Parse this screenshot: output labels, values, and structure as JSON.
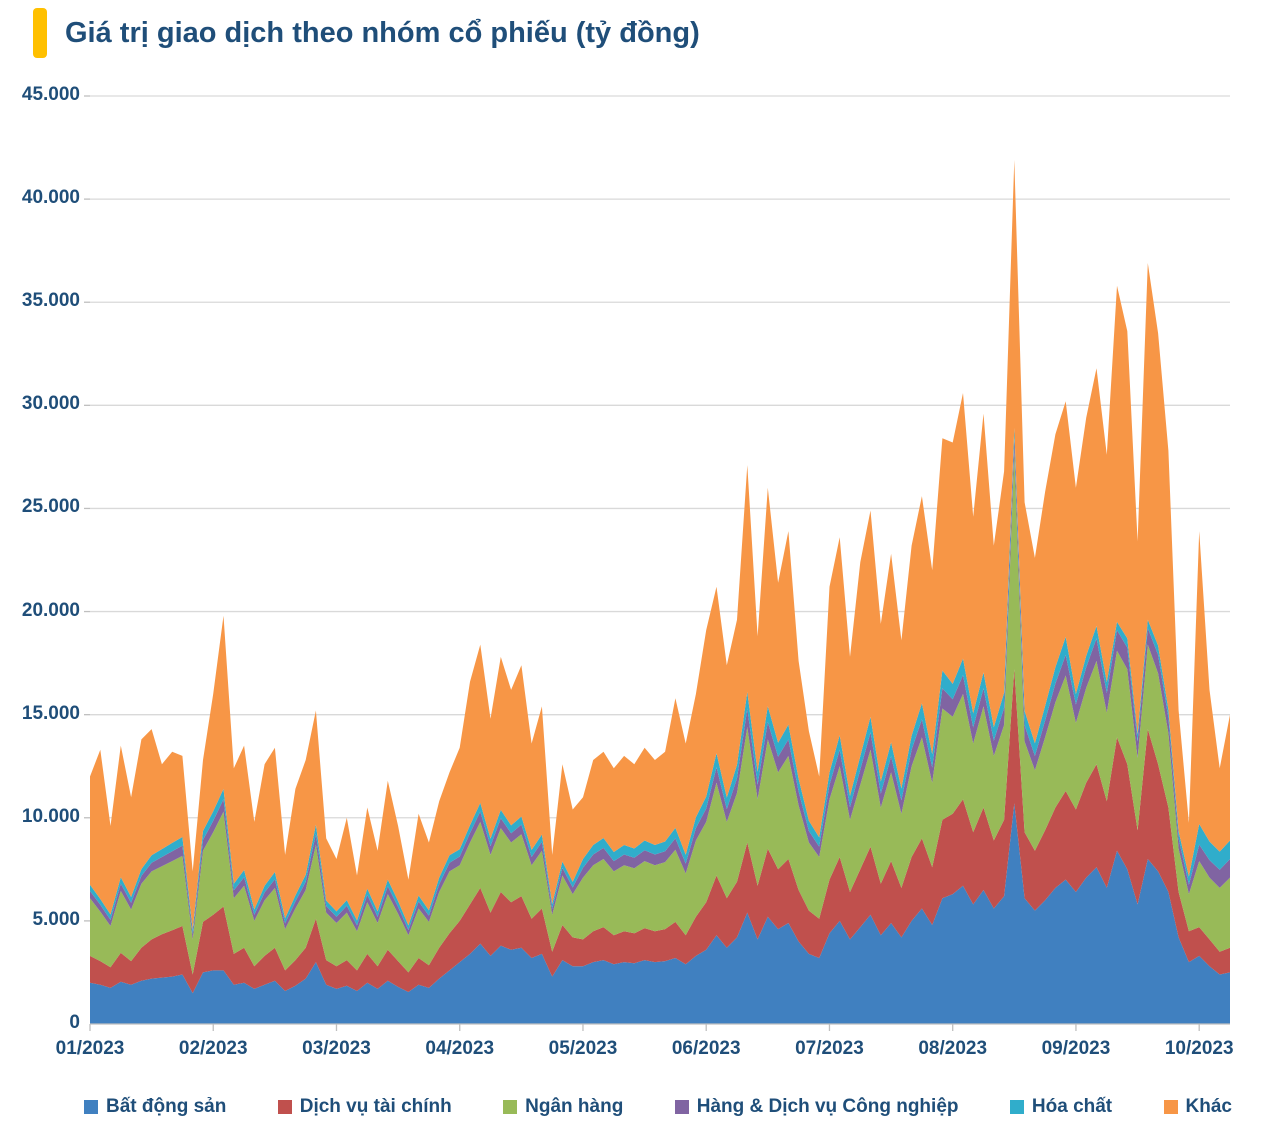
{
  "title": "Giá trị giao dịch theo nhóm cổ phiếu (tỷ đồng)",
  "colors": {
    "accent": "#FFC000",
    "text": "#1F4E79",
    "grid": "#D9D9D9",
    "axis": "#BFBFBF",
    "background": "#FFFFFF"
  },
  "chart_data": {
    "type": "area",
    "stacked": true,
    "title": "Giá trị giao dịch theo nhóm cổ phiếu (tỷ đồng)",
    "unit": "tỷ đồng",
    "ylim": [
      0,
      45000
    ],
    "ytick_step": 5000,
    "ytick_labels": [
      "0",
      "5.000",
      "10.000",
      "15.000",
      "20.000",
      "25.000",
      "30.000",
      "35.000",
      "40.000",
      "45.000"
    ],
    "x_labels": [
      "01/2023",
      "02/2023",
      "03/2023",
      "04/2023",
      "05/2023",
      "06/2023",
      "07/2023",
      "08/2023",
      "09/2023",
      "10/2023"
    ],
    "month_start_indices": [
      0,
      12,
      24,
      36,
      48,
      60,
      72,
      84,
      96,
      108
    ],
    "grid": true,
    "legend_position": "bottom",
    "series": [
      {
        "name": "Bất động sản",
        "color": "#4080C0",
        "values": [
          2000,
          1900,
          1750,
          2050,
          1900,
          2100,
          2200,
          2250,
          2300,
          2400,
          1500,
          2500,
          2600,
          2600,
          1900,
          2000,
          1700,
          1900,
          2100,
          1600,
          1850,
          2200,
          3000,
          1900,
          1700,
          1850,
          1600,
          2000,
          1700,
          2100,
          1800,
          1550,
          1900,
          1750,
          2200,
          2600,
          3000,
          3400,
          3900,
          3300,
          3800,
          3600,
          3700,
          3200,
          3400,
          2300,
          3100,
          2800,
          2800,
          3000,
          3100,
          2900,
          3000,
          2950,
          3100,
          3000,
          3050,
          3200,
          2900,
          3300,
          3600,
          4300,
          3700,
          4200,
          5400,
          4100,
          5200,
          4600,
          4900,
          4000,
          3400,
          3200,
          4400,
          5000,
          4100,
          4700,
          5300,
          4300,
          4900,
          4200,
          5000,
          5600,
          4800,
          6100,
          6300,
          6700,
          5800,
          6500,
          5600,
          6200,
          10700,
          6100,
          5500,
          6000,
          6600,
          7000,
          6400,
          7100,
          7600,
          6600,
          8400,
          7500,
          5800,
          8000,
          7400,
          6400,
          4200,
          3000,
          3300,
          2800,
          2400,
          2500
        ]
      },
      {
        "name": "Dịch vụ tài chính",
        "color": "#C0504D",
        "values": [
          1300,
          1150,
          1000,
          1400,
          1150,
          1600,
          1900,
          2100,
          2250,
          2350,
          900,
          2450,
          2700,
          3100,
          1500,
          1700,
          1100,
          1400,
          1600,
          1000,
          1250,
          1500,
          2100,
          1200,
          1100,
          1250,
          1000,
          1400,
          1100,
          1500,
          1250,
          950,
          1300,
          1100,
          1500,
          1800,
          2000,
          2400,
          2700,
          2100,
          2600,
          2300,
          2500,
          1900,
          2200,
          1200,
          1700,
          1400,
          1300,
          1500,
          1600,
          1400,
          1500,
          1450,
          1550,
          1500,
          1550,
          1750,
          1400,
          1900,
          2300,
          2900,
          2400,
          2700,
          3400,
          2600,
          3300,
          2900,
          3100,
          2500,
          2100,
          1900,
          2600,
          3100,
          2300,
          2800,
          3300,
          2500,
          3000,
          2400,
          3100,
          3400,
          2800,
          3800,
          3900,
          4200,
          3500,
          4000,
          3300,
          3700,
          6500,
          3200,
          2900,
          3400,
          3900,
          4300,
          4000,
          4600,
          5000,
          4200,
          5500,
          5100,
          3600,
          6300,
          5200,
          4100,
          2200,
          1500,
          1400,
          1300,
          1100,
          1200
        ]
      },
      {
        "name": "Ngân hàng",
        "color": "#98BA58",
        "values": [
          2800,
          2400,
          2000,
          3000,
          2500,
          3100,
          3300,
          3300,
          3350,
          3400,
          1700,
          3450,
          4000,
          4600,
          2700,
          3000,
          2200,
          2700,
          2900,
          2000,
          2500,
          2800,
          3600,
          2300,
          2100,
          2300,
          1900,
          2500,
          2100,
          2700,
          2300,
          1800,
          2400,
          2100,
          2700,
          3000,
          2700,
          3000,
          3200,
          2800,
          3100,
          2900,
          3000,
          2600,
          2800,
          1800,
          2400,
          2100,
          3000,
          3200,
          3300,
          3100,
          3200,
          3150,
          3250,
          3200,
          3250,
          3500,
          3000,
          3700,
          3900,
          4500,
          3700,
          4300,
          5600,
          4200,
          5300,
          4700,
          5000,
          4100,
          3300,
          3000,
          3900,
          4400,
          3500,
          4100,
          4700,
          3700,
          4300,
          3600,
          4400,
          4900,
          4100,
          5400,
          4700,
          5100,
          4300,
          4900,
          4100,
          4600,
          10500,
          4400,
          3900,
          4500,
          5100,
          5600,
          4200,
          4600,
          5000,
          4300,
          4200,
          4600,
          3500,
          4100,
          4400,
          3600,
          2100,
          1800,
          3200,
          3000,
          3100,
          3400
        ]
      },
      {
        "name": "Hàng & Dịch vụ Công nghiệp",
        "color": "#8064A2",
        "values": [
          350,
          330,
          300,
          360,
          330,
          380,
          420,
          450,
          480,
          500,
          250,
          520,
          550,
          600,
          380,
          420,
          300,
          380,
          420,
          280,
          340,
          400,
          520,
          320,
          300,
          330,
          280,
          360,
          300,
          380,
          330,
          260,
          340,
          300,
          380,
          420,
          420,
          460,
          500,
          430,
          480,
          450,
          470,
          400,
          430,
          280,
          370,
          320,
          480,
          520,
          540,
          500,
          520,
          510,
          530,
          520,
          530,
          560,
          480,
          600,
          650,
          750,
          620,
          720,
          900,
          700,
          850,
          760,
          800,
          680,
          560,
          500,
          700,
          800,
          620,
          740,
          850,
          670,
          780,
          650,
          790,
          880,
          740,
          980,
          850,
          920,
          780,
          880,
          740,
          830,
          700,
          790,
          700,
          810,
          910,
          1000,
          900,
          1000,
          1100,
          950,
          1000,
          1050,
          800,
          800,
          900,
          750,
          500,
          450,
          800,
          850,
          880,
          900
        ]
      },
      {
        "name": "Hóa chất",
        "color": "#30ADCB",
        "values": [
          300,
          280,
          260,
          310,
          280,
          330,
          360,
          380,
          400,
          420,
          220,
          440,
          460,
          500,
          320,
          350,
          250,
          320,
          350,
          240,
          290,
          340,
          440,
          270,
          260,
          280,
          240,
          300,
          260,
          320,
          280,
          220,
          290,
          260,
          320,
          360,
          350,
          380,
          420,
          360,
          400,
          380,
          390,
          340,
          360,
          240,
          310,
          270,
          420,
          460,
          480,
          440,
          460,
          450,
          470,
          460,
          470,
          500,
          430,
          530,
          580,
          680,
          560,
          650,
          800,
          630,
          760,
          680,
          720,
          610,
          500,
          450,
          600,
          700,
          540,
          650,
          740,
          590,
          680,
          570,
          690,
          770,
          650,
          860,
          740,
          800,
          680,
          770,
          650,
          730,
          500,
          690,
          610,
          710,
          790,
          870,
          500,
          550,
          600,
          520,
          400,
          450,
          350,
          400,
          450,
          400,
          350,
          400,
          1000,
          900,
          880,
          900
        ]
      },
      {
        "name": "Khác",
        "color": "#F79646",
        "values": [
          5250,
          7240,
          4290,
          6380,
          4840,
          6290,
          6120,
          4120,
          4420,
          3930,
          2830,
          3440,
          5690,
          8400,
          5600,
          6030,
          4250,
          5900,
          6030,
          3080,
          5170,
          5560,
          5540,
          3010,
          2540,
          3990,
          2180,
          3940,
          2940,
          4800,
          3640,
          2220,
          3970,
          3290,
          3700,
          4020,
          4930,
          6960,
          7680,
          5810,
          7420,
          6570,
          7340,
          5160,
          6210,
          2380,
          4720,
          3510,
          3000,
          4120,
          4180,
          4060,
          4320,
          4090,
          4500,
          4120,
          4350,
          6290,
          5390,
          5970,
          8070,
          8070,
          6420,
          7030,
          11000,
          6570,
          10590,
          7760,
          9380,
          5710,
          4340,
          2950,
          9000,
          9600,
          6740,
          9410,
          10010,
          7640,
          9140,
          7180,
          9220,
          10050,
          8910,
          11260,
          11710,
          12880,
          9540,
          12550,
          8810,
          10740,
          13000,
          10120,
          8990,
          10380,
          11300,
          11430,
          10000,
          11550,
          12500,
          11030,
          16300,
          14900,
          9350,
          17300,
          15150,
          12550,
          5850,
          2600,
          14200,
          7350,
          4040,
          6100
        ]
      }
    ]
  }
}
